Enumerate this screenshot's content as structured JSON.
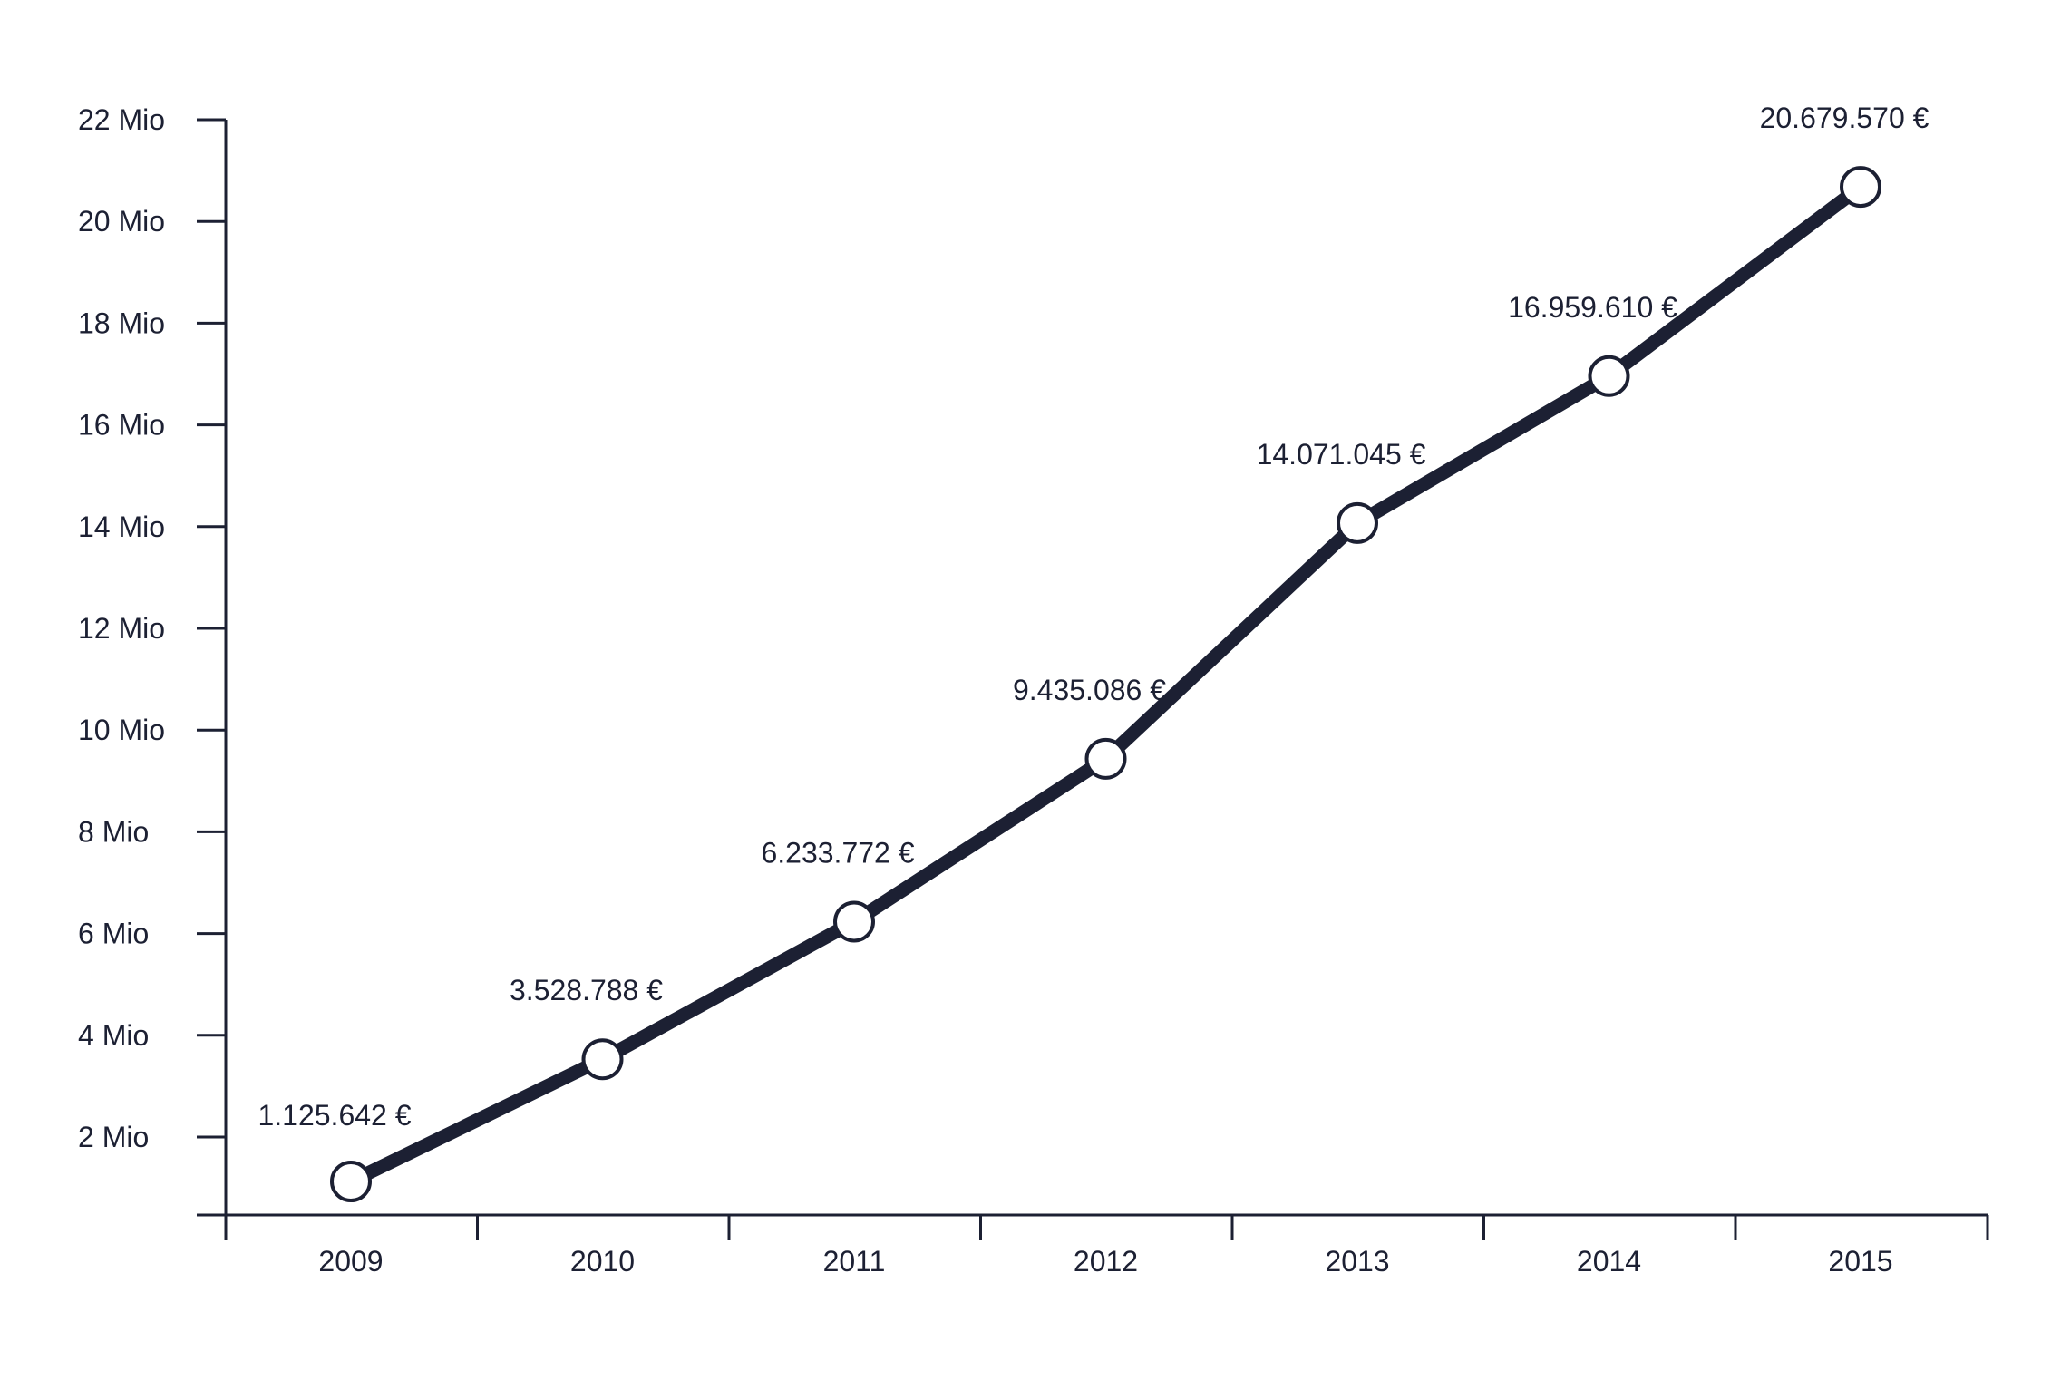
{
  "colors": {
    "ink": "#1c2033",
    "marker_fill": "#ffffff",
    "background": "#ffffff"
  },
  "chart_data": {
    "type": "line",
    "title": "",
    "xlabel": "",
    "ylabel": "",
    "categories": [
      "2009",
      "2010",
      "2011",
      "2012",
      "2013",
      "2014",
      "2015"
    ],
    "series": [
      {
        "values": [
          1125642,
          3528788,
          6233772,
          9435086,
          14071045,
          16959610,
          20679570
        ],
        "labels": [
          "1.125.642 €",
          "3.528.788 €",
          "6.233.772 €",
          "9.435.086 €",
          "14.071.045 €",
          "16.959.610 €",
          "20.679.570 €"
        ]
      }
    ],
    "y_ticks": [
      {
        "value": 2000000,
        "label": "2 Mio"
      },
      {
        "value": 4000000,
        "label": "4 Mio"
      },
      {
        "value": 6000000,
        "label": "6 Mio"
      },
      {
        "value": 8000000,
        "label": "8 Mio"
      },
      {
        "value": 10000000,
        "label": "10 Mio"
      },
      {
        "value": 12000000,
        "label": "12 Mio"
      },
      {
        "value": 14000000,
        "label": "14 Mio"
      },
      {
        "value": 16000000,
        "label": "16 Mio"
      },
      {
        "value": 18000000,
        "label": "18 Mio"
      },
      {
        "value": 20000000,
        "label": "20 Mio"
      },
      {
        "value": 22000000,
        "label": "22 Mio"
      }
    ],
    "ylim": [
      0,
      22000000
    ],
    "grid": false,
    "legend": "none",
    "markers": "hollow-circle"
  }
}
